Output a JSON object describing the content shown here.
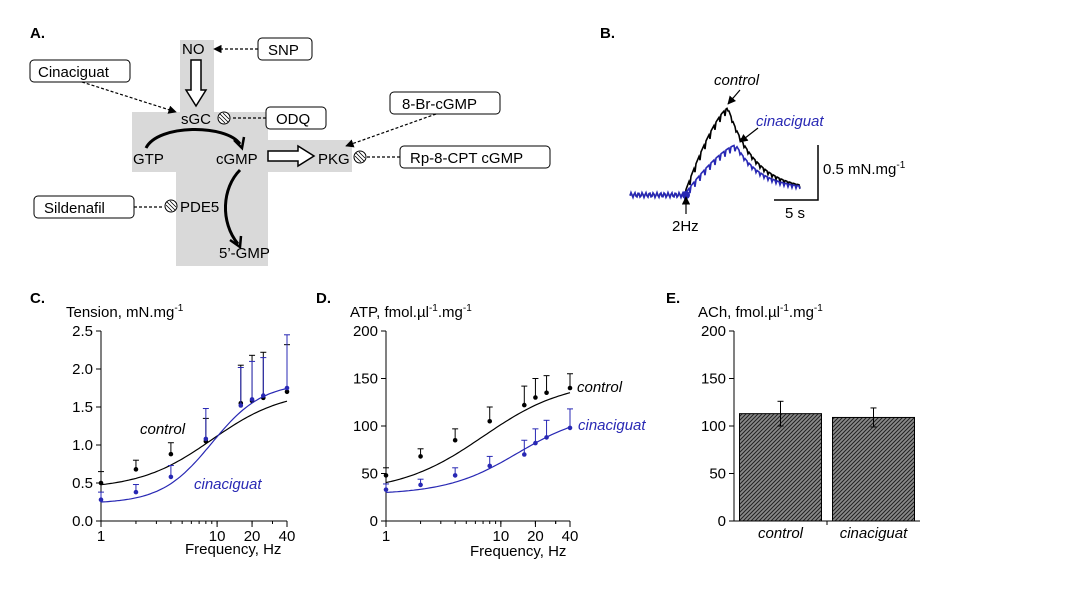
{
  "panels": {
    "A": {
      "letter": "A.",
      "nodes": {
        "no": "NO",
        "sgc": "sGC",
        "gtp": "GTP",
        "cgmp": "cGMP",
        "pkg": "PKG",
        "pde5": "PDE5",
        "gmp5": "5’-GMP"
      },
      "boxes": {
        "snp": "SNP",
        "cinaciguat": "Cinaciguat",
        "odq": "ODQ",
        "br_cgmp": "8-Br-cGMP",
        "rp_cgmp": "Rp-8-CPT cGMP",
        "sildenafil": "Sildenafil"
      },
      "colors": {
        "shade": "#d9d9d9"
      }
    },
    "B": {
      "letter": "B.",
      "label_control": "control",
      "label_cinaciguat": "cinaciguat",
      "stim_label": "2Hz",
      "scale_y": "0.5 mN.mg",
      "scale_y_sup": "-1",
      "scale_x": "5 s"
    },
    "C": {
      "letter": "C."
    },
    "D": {
      "letter": "D."
    },
    "E": {
      "letter": "E."
    }
  },
  "colors": {
    "control": "#000000",
    "cinaciguat": "#2828b4",
    "bar_fill": "#6e6e6e"
  },
  "chart_data": [
    {
      "id": "C",
      "type": "line",
      "ylabel_main": "Tension, mN.mg",
      "ylabel_sup": "-1",
      "xlabel": "Frequency, Hz",
      "xscale": "log",
      "xlim": [
        1,
        40
      ],
      "ylim": [
        0,
        2.5
      ],
      "xticks": [
        1,
        10,
        20,
        40
      ],
      "xtick_labels": [
        "1",
        "10",
        "20",
        "40"
      ],
      "yticks": [
        0,
        0.5,
        1.0,
        1.5,
        2.0,
        2.5
      ],
      "ytick_labels": [
        "0.0",
        "0.5",
        "1.0",
        "1.5",
        "2.0",
        "2.5"
      ],
      "series": [
        {
          "name": "control",
          "color": "#000000",
          "x": [
            1,
            2,
            4,
            8,
            16,
            20,
            25,
            40
          ],
          "y": [
            0.5,
            0.68,
            0.88,
            1.05,
            1.55,
            1.58,
            1.62,
            1.7
          ],
          "err": [
            0.15,
            0.12,
            0.15,
            0.3,
            0.5,
            0.6,
            0.6,
            0.62
          ],
          "fit": {
            "bottom": 0.42,
            "top": 1.72,
            "x50": 9,
            "hill": 1.4
          }
        },
        {
          "name": "cinaciguat",
          "color": "#2828b4",
          "x": [
            1,
            2,
            4,
            8,
            16,
            20,
            25,
            40
          ],
          "y": [
            0.28,
            0.38,
            0.58,
            1.08,
            1.52,
            1.6,
            1.65,
            1.75
          ],
          "err": [
            0.1,
            0.1,
            0.15,
            0.4,
            0.5,
            0.5,
            0.5,
            0.7
          ],
          "fit": {
            "bottom": 0.23,
            "top": 1.82,
            "x50": 9,
            "hill": 2.0
          }
        }
      ]
    },
    {
      "id": "D",
      "type": "line",
      "ylabel_main": "ATP, fmol.µl",
      "ylabel_sup1": "-1",
      "ylabel_mid": ".mg",
      "ylabel_sup2": "-1",
      "xlabel": "Frequency, Hz",
      "xscale": "log",
      "xlim": [
        1,
        40
      ],
      "ylim": [
        0,
        200
      ],
      "xticks": [
        1,
        10,
        20,
        40
      ],
      "xtick_labels": [
        "1",
        "10",
        "20",
        "40"
      ],
      "yticks": [
        0,
        50,
        100,
        150,
        200
      ],
      "ytick_labels": [
        "0",
        "50",
        "100",
        "150",
        "200"
      ],
      "series": [
        {
          "name": "control",
          "color": "#000000",
          "x": [
            1,
            2,
            4,
            8,
            16,
            20,
            25,
            40
          ],
          "y": [
            48,
            68,
            85,
            105,
            122,
            130,
            135,
            140
          ],
          "err": [
            8,
            8,
            12,
            15,
            20,
            20,
            18,
            15
          ],
          "fit": {
            "bottom": 30,
            "top": 148,
            "x50": 7,
            "hill": 1.2
          }
        },
        {
          "name": "cinaciguat",
          "color": "#2828b4",
          "x": [
            1,
            2,
            4,
            8,
            16,
            20,
            25,
            40
          ],
          "y": [
            33,
            38,
            48,
            58,
            70,
            82,
            88,
            98
          ],
          "err": [
            6,
            6,
            8,
            10,
            15,
            15,
            18,
            20
          ],
          "fit": {
            "bottom": 28,
            "top": 115,
            "x50": 14,
            "hill": 1.4
          }
        }
      ]
    },
    {
      "id": "E",
      "type": "bar",
      "ylabel_main": "ACh, fmol.µl",
      "ylabel_sup1": "-1",
      "ylabel_mid": ".mg",
      "ylabel_sup2": "-1",
      "categories": [
        "control",
        "cinaciguat"
      ],
      "values": [
        113,
        109
      ],
      "err": [
        13,
        10
      ],
      "ylim": [
        0,
        200
      ],
      "yticks": [
        0,
        50,
        100,
        150,
        200
      ],
      "ytick_labels": [
        "0",
        "50",
        "100",
        "150",
        "200"
      ]
    }
  ]
}
